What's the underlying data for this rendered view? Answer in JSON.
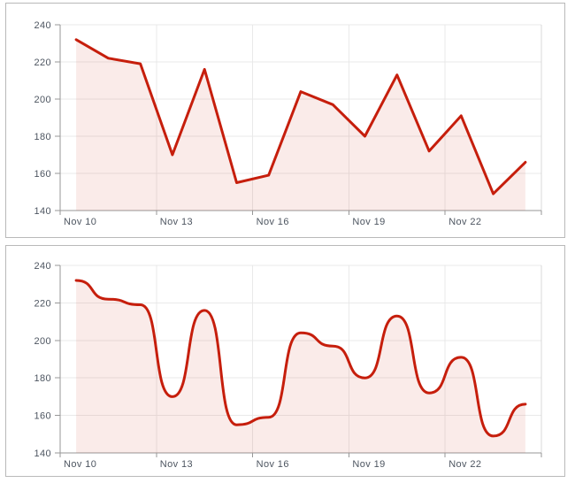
{
  "colors": {
    "line": "#c61e0c",
    "fill": "#c61e0c",
    "grid": "#e9e9e9",
    "edge_grid": "#d9d9d9",
    "axis": "#979797",
    "label": "#4d5560",
    "panel_border": "#b9b9b9",
    "background": "#ffffff"
  },
  "panels": [
    {
      "name": "straight-line-area-chart",
      "chart_index": 0
    },
    {
      "name": "smoothed-line-area-chart",
      "chart_index": 1
    }
  ],
  "chart_data": [
    {
      "type": "area",
      "title": "",
      "xlabel": "",
      "ylabel": "",
      "line_style": "straight",
      "x": [
        "Nov 10",
        "Nov 11",
        "Nov 12",
        "Nov 13",
        "Nov 14",
        "Nov 15",
        "Nov 16",
        "Nov 17",
        "Nov 18",
        "Nov 19",
        "Nov 20",
        "Nov 21",
        "Nov 22",
        "Nov 23",
        "Nov 24"
      ],
      "values": [
        232,
        222,
        219,
        170,
        216,
        155,
        159,
        204,
        197,
        180,
        213,
        172,
        191,
        149,
        166
      ],
      "ylim": [
        140,
        240
      ],
      "yticks": [
        140,
        160,
        180,
        200,
        220,
        240
      ],
      "xticks_every": 3,
      "xtick_labels": [
        "Nov 10",
        "Nov 13",
        "Nov 16",
        "Nov 19",
        "Nov 22"
      ],
      "grid": true,
      "legend": false,
      "fill_opacity": 0.09,
      "line_width": 3
    },
    {
      "type": "area",
      "title": "",
      "xlabel": "",
      "ylabel": "",
      "line_style": "smoothed",
      "x": [
        "Nov 10",
        "Nov 11",
        "Nov 12",
        "Nov 13",
        "Nov 14",
        "Nov 15",
        "Nov 16",
        "Nov 17",
        "Nov 18",
        "Nov 19",
        "Nov 20",
        "Nov 21",
        "Nov 22",
        "Nov 23",
        "Nov 24"
      ],
      "values": [
        232,
        222,
        219,
        170,
        216,
        155,
        159,
        204,
        197,
        180,
        213,
        172,
        191,
        149,
        166
      ],
      "ylim": [
        140,
        240
      ],
      "yticks": [
        140,
        160,
        180,
        200,
        220,
        240
      ],
      "xticks_every": 3,
      "xtick_labels": [
        "Nov 10",
        "Nov 13",
        "Nov 16",
        "Nov 19",
        "Nov 22"
      ],
      "grid": true,
      "legend": false,
      "fill_opacity": 0.09,
      "line_width": 3
    }
  ]
}
